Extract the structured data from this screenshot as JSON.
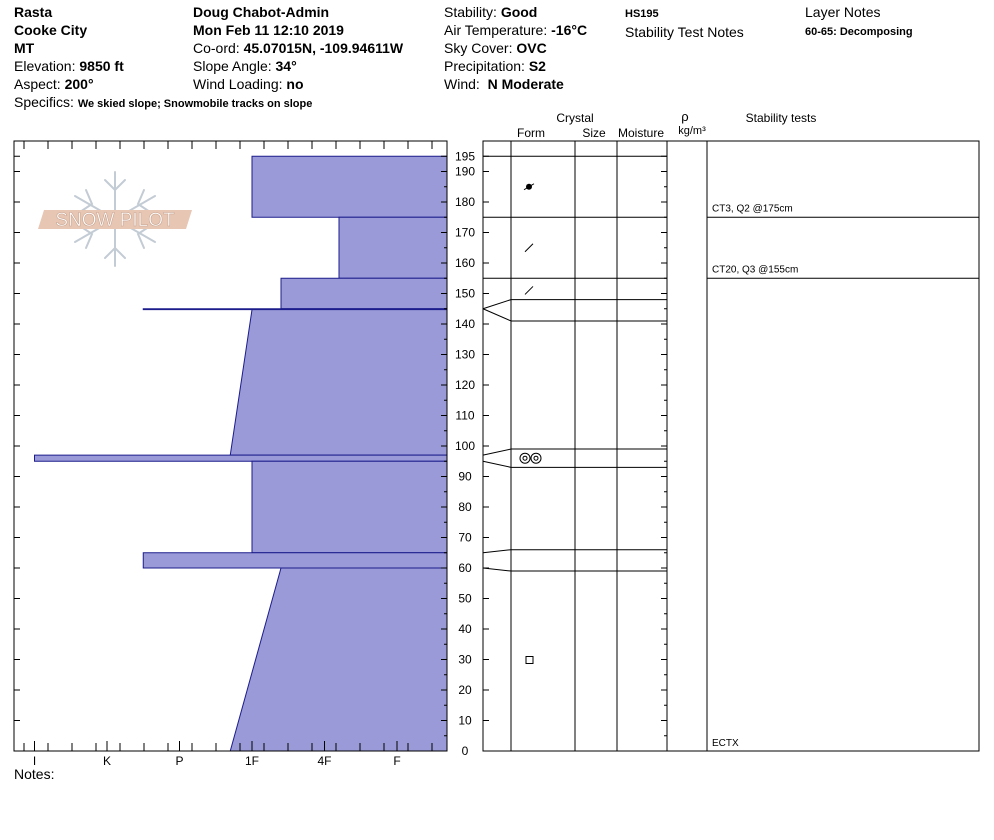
{
  "header": {
    "location": "Rasta",
    "range": "Cooke City",
    "state": "MT",
    "elevation_label": "Elevation:",
    "elevation_value": "9850 ft",
    "aspect_label": "Aspect:",
    "aspect_value": "200°",
    "specifics_label": "Specifics:",
    "specifics_value": "We skied slope; Snowmobile tracks on slope",
    "observer": "Doug Chabot-Admin",
    "datetime": "Mon Feb 11 12:10 2019",
    "coord_label": "Co-ord:",
    "coord_value": "45.07015N, -109.94611W",
    "slope_label": "Slope Angle:",
    "slope_value": "34°",
    "wind_loading_label": "Wind Loading:",
    "wind_loading_value": "no",
    "stability_label": "Stability:",
    "stability_value": "Good",
    "air_temp_label": "Air Temperature:",
    "air_temp_value": "-16°C",
    "sky_label": "Sky Cover:",
    "sky_value": "OVC",
    "precip_label": "Precipitation:",
    "precip_value": "S2",
    "wind_label": "Wind:",
    "wind_value": "N Moderate",
    "hs": "HS195",
    "stability_test_notes": "Stability Test Notes",
    "layer_notes_title": "Layer Notes",
    "layer_notes_value": "60-65: Decomposing",
    "notes_label": "Notes:"
  },
  "logo_text": "SNOW PILOT",
  "columns": {
    "crystal": "Crystal",
    "form": "Form",
    "size": "Size",
    "moisture": "Moisture",
    "rho": "ρ",
    "density_unit": "kg/m³",
    "stability_tests": "Stability tests"
  },
  "chart_data": {
    "type": "area",
    "title": "",
    "xlabel": "",
    "ylabel": "",
    "x_tick_labels": [
      "I",
      "K",
      "P",
      "1F",
      "4F",
      "F"
    ],
    "y_ticks": [
      0,
      10,
      20,
      30,
      40,
      50,
      60,
      70,
      80,
      90,
      100,
      110,
      120,
      130,
      140,
      150,
      160,
      170,
      180,
      190,
      195
    ],
    "ylim": [
      0,
      200
    ],
    "hardness_scale_note": "F=0, 4F=1, 1F=2, P=3, K=4, I=5",
    "layers": [
      {
        "top": 195,
        "bottom": 175,
        "hardness_top": 2,
        "hardness_bottom": 2
      },
      {
        "top": 175,
        "bottom": 155,
        "hardness_top": 0.8,
        "hardness_bottom": 0.8
      },
      {
        "top": 155,
        "bottom": 145,
        "hardness_top": 1.6,
        "hardness_bottom": 1.6
      },
      {
        "top": 145,
        "bottom": 144.7,
        "hardness_top": 3.5,
        "hardness_bottom": 3.5
      },
      {
        "top": 144.7,
        "bottom": 97,
        "hardness_top": 2,
        "hardness_bottom": 2.3
      },
      {
        "top": 97,
        "bottom": 95,
        "hardness_top": 5,
        "hardness_bottom": 5
      },
      {
        "top": 95,
        "bottom": 65,
        "hardness_top": 2,
        "hardness_bottom": 2
      },
      {
        "top": 65,
        "bottom": 60,
        "hardness_top": 3.5,
        "hardness_bottom": 3.5
      },
      {
        "top": 60,
        "bottom": 0,
        "hardness_top": 1.6,
        "hardness_bottom": 2.3
      }
    ],
    "layer_boundaries": [
      195,
      175,
      155,
      148,
      141,
      99,
      93,
      66,
      59
    ],
    "grain_symbols": [
      {
        "height": 185,
        "symbol": "dot"
      },
      {
        "height": 165,
        "symbol": "slash"
      },
      {
        "height": 151,
        "symbol": "slash"
      },
      {
        "height": 96,
        "symbol": "rounds"
      },
      {
        "height": 30,
        "symbol": "square"
      }
    ],
    "stability_tests": [
      {
        "height": 175,
        "label": "CT3, Q2 @175cm"
      },
      {
        "height": 155,
        "label": "CT20, Q3 @155cm"
      },
      {
        "height": 0,
        "label": "ECTX"
      }
    ]
  },
  "colors": {
    "fill": "#9a9ad8",
    "edge": "#1c1c8c",
    "line": "#000000",
    "logo": "#e8c6b4"
  }
}
